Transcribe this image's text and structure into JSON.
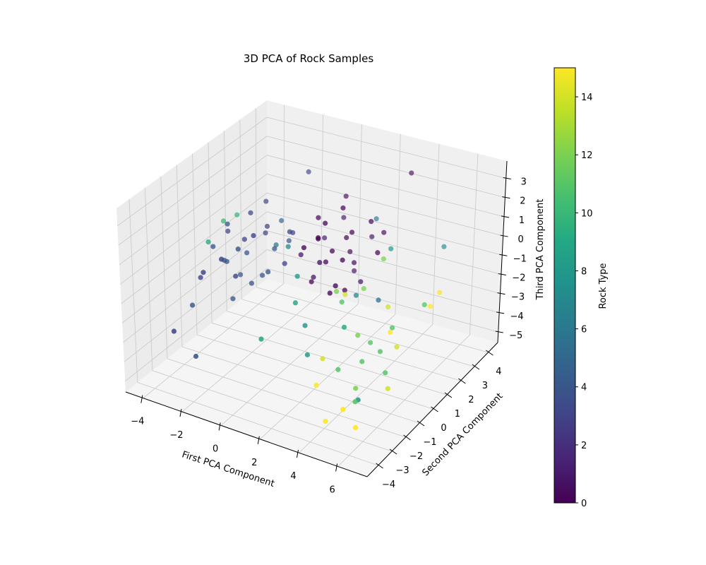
{
  "chart_data": {
    "type": "scatter",
    "projection": "3d",
    "title": "3D PCA of Rock Samples",
    "xlabel": "First PCA Component",
    "ylabel": "Second PCA Component",
    "zlabel": "Third PCA Component",
    "colorbar_label": "Rock Type",
    "colormap": "viridis",
    "grid": true,
    "xlim": [
      -4.9,
      7.5
    ],
    "ylim": [
      -4.8,
      4.7
    ],
    "zlim": [
      -5.55,
      3.9
    ],
    "clim": [
      0,
      15
    ],
    "x_ticks": [
      -4,
      -2,
      0,
      2,
      4,
      6
    ],
    "y_ticks": [
      -4,
      -3,
      -2,
      -1,
      0,
      1,
      2,
      3,
      4
    ],
    "z_ticks": [
      -5,
      -4,
      -3,
      -2,
      -1,
      0,
      1,
      2,
      3
    ],
    "colorbar_ticks": [
      0,
      2,
      4,
      6,
      8,
      10,
      12,
      14
    ],
    "point_fields": [
      "x",
      "y",
      "z",
      "rock_type"
    ],
    "points": [
      [
        0.5,
        1.2,
        0.3,
        0
      ],
      [
        1.2,
        0.8,
        -0.5,
        0
      ],
      [
        2.0,
        1.5,
        0.8,
        0
      ],
      [
        0.8,
        0.5,
        -1.2,
        1
      ],
      [
        1.5,
        1.8,
        0.2,
        0
      ],
      [
        2.5,
        1.0,
        -0.3,
        1
      ],
      [
        0.2,
        1.6,
        1.0,
        0
      ],
      [
        1.8,
        0.3,
        -1.6,
        0
      ],
      [
        2.8,
        1.8,
        0.6,
        1
      ],
      [
        1.0,
        1.0,
        1.3,
        0
      ],
      [
        0.0,
        0.7,
        -0.4,
        1
      ],
      [
        2.2,
        0.6,
        0.0,
        0
      ],
      [
        1.4,
        2.2,
        -0.8,
        0
      ],
      [
        3.0,
        0.8,
        -1.0,
        1
      ],
      [
        0.6,
        0.1,
        0.5,
        0
      ],
      [
        1.9,
        1.2,
        -2.0,
        0
      ],
      [
        2.6,
        2.0,
        1.2,
        0
      ],
      [
        0.3,
        1.9,
        -0.2,
        1
      ],
      [
        1.1,
        0.4,
        0.9,
        0
      ],
      [
        3.4,
        1.4,
        0.2,
        0
      ],
      [
        1.6,
        1.4,
        2.0,
        0
      ],
      [
        0.9,
        2.4,
        0.7,
        1
      ],
      [
        2.3,
        0.0,
        -0.9,
        0
      ],
      [
        1.3,
        1.1,
        -0.1,
        0
      ],
      [
        3.5,
        3.5,
        3.0,
        0
      ],
      [
        2.0,
        1.7,
        -1.3,
        1
      ],
      [
        0.4,
        0.9,
        -1.8,
        0
      ],
      [
        2.9,
        2.5,
        0.4,
        0
      ],
      [
        1.7,
        -0.3,
        0.3,
        1
      ],
      [
        0.7,
        2.8,
        1.5,
        0
      ],
      [
        -2.5,
        0.2,
        0.0,
        3
      ],
      [
        -3.0,
        -0.5,
        -0.8,
        4
      ],
      [
        -1.8,
        0.8,
        0.5,
        3
      ],
      [
        -3.5,
        0.3,
        -1.5,
        4
      ],
      [
        -2.2,
        -0.8,
        -1.2,
        3
      ],
      [
        -1.2,
        0.5,
        -0.3,
        4
      ],
      [
        -2.8,
        1.0,
        0.8,
        3
      ],
      [
        -3.8,
        -0.2,
        -0.5,
        4
      ],
      [
        -1.5,
        -0.5,
        0.9,
        3
      ],
      [
        -2.0,
        0.0,
        -2.0,
        4
      ],
      [
        -0.8,
        1.2,
        0.2,
        3
      ],
      [
        -3.2,
        0.8,
        -2.4,
        4
      ],
      [
        -2.6,
        -1.2,
        -0.2,
        3
      ],
      [
        -1.0,
        -0.2,
        -1.0,
        4
      ],
      [
        -4.0,
        -0.8,
        -1.8,
        3
      ],
      [
        -3.6,
        0.5,
        0.3,
        4
      ],
      [
        -2.4,
        1.5,
        1.2,
        3
      ],
      [
        -1.6,
        0.2,
        -1.6,
        4
      ],
      [
        -0.5,
        0.6,
        0.7,
        3
      ],
      [
        -2.9,
        -0.1,
        -3.0,
        4
      ],
      [
        -4.3,
        -1.0,
        -3.2,
        4
      ],
      [
        -2.0,
        2.0,
        0.0,
        5
      ],
      [
        -1.3,
        1.6,
        -0.6,
        4
      ],
      [
        -3.3,
        -1.5,
        -0.9,
        3
      ],
      [
        -0.3,
        0.0,
        -0.5,
        3
      ],
      [
        -2.7,
        0.6,
        -1.0,
        4
      ],
      [
        -3.9,
        0.9,
        -0.4,
        3
      ],
      [
        -1.9,
        -1.0,
        0.4,
        4
      ],
      [
        -4.5,
        -2.0,
        -4.0,
        3
      ],
      [
        -1.0,
        2.5,
        2.5,
        3
      ],
      [
        -3.0,
        -2.5,
        -4.5,
        4
      ],
      [
        -2.2,
        1.2,
        -0.2,
        3
      ],
      [
        -0.5,
        0.5,
        0.0,
        7
      ],
      [
        0.5,
        -0.2,
        -0.8,
        8
      ],
      [
        -4.2,
        0.0,
        -0.5,
        9
      ],
      [
        -3.5,
        1.0,
        0.5,
        10
      ],
      [
        1.5,
        -1.0,
        -2.5,
        8
      ],
      [
        3.0,
        0.5,
        -1.5,
        7
      ],
      [
        4.0,
        1.5,
        0.5,
        8
      ],
      [
        0.0,
        -2.0,
        -3.0,
        9
      ],
      [
        2.0,
        -1.5,
        -3.5,
        8
      ],
      [
        5.0,
        -2.0,
        -4.5,
        8
      ],
      [
        4.5,
        0.0,
        -1.0,
        6
      ],
      [
        6.0,
        2.5,
        0.5,
        7
      ],
      [
        3.5,
        -1.0,
        -2.0,
        9
      ],
      [
        -1.5,
        1.0,
        -0.5,
        6
      ],
      [
        2.5,
        2.5,
        1.0,
        6
      ],
      [
        1.0,
        -1.0,
        -1.5,
        9
      ],
      [
        3.0,
        -0.5,
        -1.2,
        11
      ],
      [
        4.2,
        -1.0,
        -2.2,
        12
      ],
      [
        4.8,
        -1.5,
        -3.0,
        11
      ],
      [
        5.5,
        -1.2,
        -2.5,
        11
      ],
      [
        5.0,
        -2.2,
        -3.8,
        12
      ],
      [
        3.6,
        0.2,
        -0.8,
        12
      ],
      [
        4.5,
        -0.5,
        -2.8,
        11
      ],
      [
        6.0,
        -1.5,
        -3.2,
        11
      ],
      [
        5.2,
        -2.5,
        -4.2,
        11
      ],
      [
        2.5,
        -0.2,
        -1.0,
        12
      ],
      [
        3.8,
        -1.8,
        -3.5,
        11
      ],
      [
        4.0,
        1.0,
        0.3,
        12
      ],
      [
        5.8,
        -0.8,
        -1.5,
        11
      ],
      [
        6.5,
        0.5,
        -1.0,
        11
      ],
      [
        -3.8,
        0.5,
        0.4,
        10
      ],
      [
        5.5,
        -0.5,
        -2.0,
        15
      ],
      [
        6.2,
        -1.0,
        -2.2,
        14
      ],
      [
        6.8,
        0.5,
        -1.0,
        15
      ],
      [
        4.8,
        -2.8,
        -4.5,
        15
      ],
      [
        3.2,
        -2.5,
        -4.0,
        15
      ],
      [
        5.6,
        -3.0,
        -5.0,
        15
      ],
      [
        6.5,
        -2.0,
        -3.5,
        14
      ],
      [
        2.8,
        0.0,
        -1.2,
        14
      ],
      [
        4.2,
        -3.2,
        -5.0,
        15
      ],
      [
        6.9,
        1.0,
        -0.6,
        15
      ],
      [
        5.0,
        0.0,
        -1.2,
        14
      ],
      [
        3.0,
        -1.8,
        -3.2,
        14
      ]
    ]
  }
}
